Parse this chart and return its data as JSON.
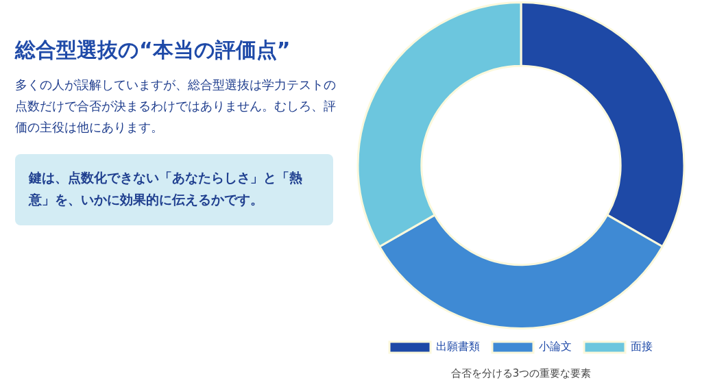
{
  "chart_data": [
    {
      "type": "other",
      "title": "総合型選抜の“本当の評価点”",
      "subtitle": "多くの人が誤解していますが、総合型選抜は学力テストの点数だけで合否が決まるわけではありません。むしろ、評価の主役は他にあります。",
      "annotations": [
        "鍵は、点数化できない「あなたらしさ」と「熱意」を、いかに効果的に伝えるかです。"
      ]
    },
    {
      "type": "donut",
      "categories": [
        "出願書類",
        "小論文",
        "面接"
      ],
      "values": [
        33.3,
        33.4,
        33.3
      ],
      "colors": [
        "#1e49a6",
        "#3f8ad4",
        "#6cc6de"
      ],
      "legend": "bottom",
      "annotations": [
        "合否を分ける3つの重要な要素"
      ]
    }
  ]
}
